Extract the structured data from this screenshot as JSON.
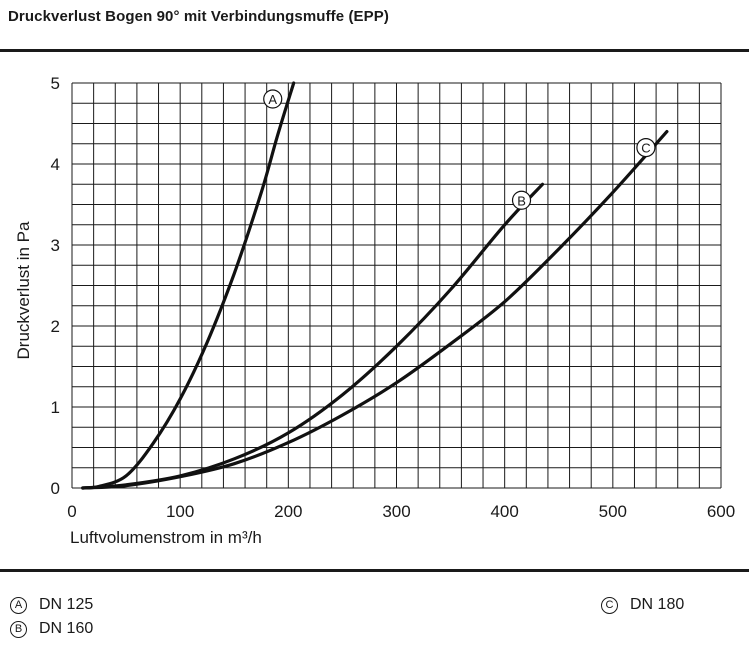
{
  "title": "Druckverlust Bogen 90° mit Verbindungsmuffe (EPP)",
  "chart_data": {
    "type": "line",
    "title": "Druckverlust Bogen 90° mit Verbindungsmuffe (EPP)",
    "xlabel": "Luftvolumenstrom in m³/h",
    "ylabel": "Druckverlust in Pa",
    "xlim": [
      0,
      600
    ],
    "ylim": [
      0,
      5
    ],
    "x_ticks": [
      "0",
      "100",
      "200",
      "300",
      "400",
      "500",
      "600"
    ],
    "y_ticks": [
      "0",
      "1",
      "2",
      "3",
      "4",
      "5"
    ],
    "grid": true,
    "series": [
      {
        "marker": "A",
        "name": "DN 125",
        "x": [
          10,
          25,
          50,
          75,
          100,
          125,
          150,
          175,
          190,
          205
        ],
        "y": [
          0.0,
          0.02,
          0.15,
          0.55,
          1.1,
          1.8,
          2.65,
          3.65,
          4.35,
          5.0
        ]
      },
      {
        "marker": "B",
        "name": "DN 160",
        "x": [
          10,
          50,
          100,
          150,
          200,
          250,
          300,
          350,
          400,
          435
        ],
        "y": [
          0.0,
          0.04,
          0.15,
          0.36,
          0.68,
          1.15,
          1.75,
          2.45,
          3.25,
          3.75
        ]
      },
      {
        "marker": "C",
        "name": "DN 180",
        "x": [
          10,
          50,
          100,
          150,
          200,
          250,
          300,
          350,
          400,
          450,
          500,
          550
        ],
        "y": [
          0.0,
          0.03,
          0.14,
          0.3,
          0.56,
          0.9,
          1.3,
          1.78,
          2.3,
          2.95,
          3.65,
          4.4
        ]
      }
    ]
  }
}
